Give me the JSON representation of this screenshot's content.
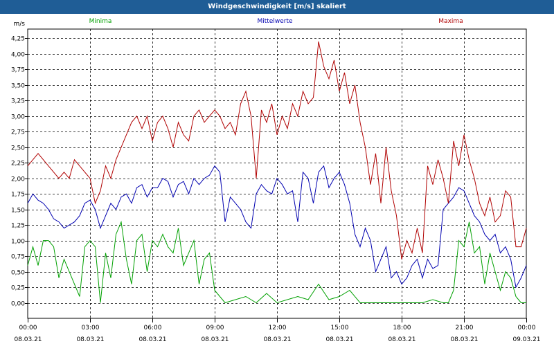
{
  "window": {
    "title": "Windgeschwindigkeit [m/s] skaliert"
  },
  "chart_data": {
    "type": "line",
    "title": "Windgeschwindigkeit [m/s] skaliert",
    "ylabel": "m/s",
    "ylim": [
      -0.25,
      4.4
    ],
    "yticks": [
      0,
      0.25,
      0.5,
      0.75,
      1.0,
      1.25,
      1.5,
      1.75,
      2.0,
      2.25,
      2.5,
      2.75,
      3.0,
      3.25,
      3.5,
      3.75,
      4.0,
      4.25
    ],
    "ytick_labels": [
      "0,00",
      "0,25",
      "0,50",
      "0,75",
      "1,00",
      "1,25",
      "1,50",
      "1,75",
      "2,00",
      "2,25",
      "2,50",
      "2,75",
      "3,00",
      "3,25",
      "3,50",
      "3,75",
      "4,00",
      "4,25"
    ],
    "xlim": [
      0,
      24
    ],
    "xticks": [
      0,
      3,
      6,
      9,
      12,
      15,
      18,
      21,
      24
    ],
    "xtick_time_labels": [
      "00:00",
      "03:00",
      "06:00",
      "09:00",
      "12:00",
      "15:00",
      "18:00",
      "21:00",
      "00:00"
    ],
    "xtick_date_labels": [
      "08.03.21",
      "08.03.21",
      "08.03.21",
      "08.03.21",
      "08.03.21",
      "08.03.21",
      "08.03.21",
      "08.03.21",
      "09.03.21"
    ],
    "grid": true,
    "legend_position": "top",
    "series": [
      {
        "name": "Minima",
        "color": "#00a000",
        "x": [
          0,
          0.25,
          0.5,
          0.75,
          1,
          1.25,
          1.5,
          1.75,
          2,
          2.25,
          2.5,
          2.75,
          3,
          3.25,
          3.5,
          3.75,
          4,
          4.25,
          4.5,
          4.75,
          5,
          5.25,
          5.5,
          5.75,
          6,
          6.25,
          6.5,
          6.75,
          7,
          7.25,
          7.5,
          7.75,
          8,
          8.25,
          8.5,
          8.75,
          9,
          9.5,
          10,
          10.5,
          11,
          11.5,
          12,
          12.5,
          13,
          13.5,
          14,
          14.5,
          15,
          15.5,
          16,
          16.5,
          17,
          17.5,
          18,
          18.5,
          19,
          19.5,
          20,
          20.25,
          20.5,
          20.75,
          21,
          21.25,
          21.5,
          21.75,
          22,
          22.25,
          22.5,
          22.75,
          23,
          23.25,
          23.5,
          23.75,
          24
        ],
        "values": [
          0.6,
          0.9,
          0.6,
          1.0,
          1.0,
          0.9,
          0.4,
          0.7,
          0.5,
          0.3,
          0.1,
          0.9,
          1.0,
          0.9,
          0.0,
          0.8,
          0.4,
          1.1,
          1.3,
          0.7,
          0.3,
          1.0,
          1.1,
          0.5,
          1.0,
          0.9,
          1.1,
          0.9,
          0.8,
          1.2,
          0.6,
          0.8,
          1.0,
          0.3,
          0.7,
          0.8,
          0.2,
          0.0,
          0.05,
          0.1,
          0.0,
          0.15,
          0.0,
          0.05,
          0.1,
          0.05,
          0.3,
          0.05,
          0.1,
          0.2,
          0.0,
          0.0,
          0.0,
          0.0,
          0.0,
          0.0,
          0.0,
          0.05,
          0.0,
          0.0,
          0.2,
          1.0,
          0.9,
          1.3,
          0.8,
          0.9,
          0.3,
          0.8,
          0.5,
          0.2,
          0.5,
          0.4,
          0.1,
          0.0,
          0.0
        ]
      },
      {
        "name": "Mittelwerte",
        "color": "#0000b0",
        "x": [
          0,
          0.25,
          0.5,
          0.75,
          1,
          1.25,
          1.5,
          1.75,
          2,
          2.25,
          2.5,
          2.75,
          3,
          3.25,
          3.5,
          3.75,
          4,
          4.25,
          4.5,
          4.75,
          5,
          5.25,
          5.5,
          5.75,
          6,
          6.25,
          6.5,
          6.75,
          7,
          7.25,
          7.5,
          7.75,
          8,
          8.25,
          8.5,
          8.75,
          9,
          9.25,
          9.5,
          9.75,
          10,
          10.25,
          10.5,
          10.75,
          11,
          11.25,
          11.5,
          11.75,
          12,
          12.25,
          12.5,
          12.75,
          13,
          13.25,
          13.5,
          13.75,
          14,
          14.25,
          14.5,
          14.75,
          15,
          15.25,
          15.5,
          15.75,
          16,
          16.25,
          16.5,
          16.75,
          17,
          17.25,
          17.5,
          17.75,
          18,
          18.25,
          18.5,
          18.75,
          19,
          19.25,
          19.5,
          19.75,
          20,
          20.25,
          20.5,
          20.75,
          21,
          21.25,
          21.5,
          21.75,
          22,
          22.25,
          22.5,
          22.75,
          23,
          23.25,
          23.5,
          23.75,
          24
        ],
        "values": [
          1.6,
          1.75,
          1.65,
          1.6,
          1.5,
          1.35,
          1.3,
          1.2,
          1.25,
          1.3,
          1.4,
          1.6,
          1.65,
          1.5,
          1.2,
          1.4,
          1.6,
          1.5,
          1.7,
          1.75,
          1.6,
          1.85,
          1.9,
          1.7,
          1.85,
          1.85,
          2.0,
          1.95,
          1.7,
          1.9,
          1.95,
          1.75,
          2.0,
          1.9,
          2.0,
          2.05,
          2.2,
          2.1,
          1.3,
          1.7,
          1.6,
          1.5,
          1.3,
          1.2,
          1.75,
          1.9,
          1.8,
          1.75,
          2.0,
          1.9,
          1.75,
          1.8,
          1.3,
          2.1,
          2.0,
          1.6,
          2.1,
          2.2,
          1.85,
          2.0,
          2.1,
          1.9,
          1.6,
          1.1,
          0.9,
          1.2,
          1.0,
          0.5,
          0.7,
          0.9,
          0.4,
          0.5,
          0.3,
          0.4,
          0.6,
          0.7,
          0.4,
          0.7,
          0.55,
          0.6,
          1.5,
          1.6,
          1.7,
          1.85,
          1.8,
          1.6,
          1.4,
          1.3,
          1.1,
          1.0,
          1.1,
          0.8,
          0.9,
          0.7,
          0.25,
          0.4,
          0.6
        ]
      },
      {
        "name": "Maxima",
        "color": "#b00000",
        "x": [
          0,
          0.25,
          0.5,
          0.75,
          1,
          1.25,
          1.5,
          1.75,
          2,
          2.25,
          2.5,
          2.75,
          3,
          3.25,
          3.5,
          3.75,
          4,
          4.25,
          4.5,
          4.75,
          5,
          5.25,
          5.5,
          5.75,
          6,
          6.25,
          6.5,
          6.75,
          7,
          7.25,
          7.5,
          7.75,
          8,
          8.25,
          8.5,
          8.75,
          9,
          9.25,
          9.5,
          9.75,
          10,
          10.25,
          10.5,
          10.75,
          11,
          11.25,
          11.5,
          11.75,
          12,
          12.25,
          12.5,
          12.75,
          13,
          13.25,
          13.5,
          13.75,
          14,
          14.25,
          14.5,
          14.75,
          15,
          15.25,
          15.5,
          15.75,
          16,
          16.25,
          16.5,
          16.75,
          17,
          17.25,
          17.5,
          17.75,
          18,
          18.25,
          18.5,
          18.75,
          19,
          19.25,
          19.5,
          19.75,
          20,
          20.25,
          20.5,
          20.75,
          21,
          21.25,
          21.5,
          21.75,
          22,
          22.25,
          22.5,
          22.75,
          23,
          23.25,
          23.5,
          23.75,
          24
        ],
        "values": [
          2.2,
          2.3,
          2.4,
          2.3,
          2.2,
          2.1,
          2.0,
          2.1,
          2.0,
          2.3,
          2.2,
          2.1,
          2.0,
          1.6,
          1.8,
          2.2,
          2.0,
          2.3,
          2.5,
          2.7,
          2.9,
          3.0,
          2.8,
          3.0,
          2.6,
          2.9,
          3.0,
          2.8,
          2.5,
          2.9,
          2.7,
          2.6,
          3.0,
          3.1,
          2.9,
          3.0,
          3.1,
          3.0,
          2.8,
          2.9,
          2.7,
          3.2,
          3.4,
          3.0,
          2.0,
          3.1,
          2.9,
          3.2,
          2.7,
          3.0,
          2.8,
          3.2,
          3.0,
          3.4,
          3.2,
          3.3,
          4.2,
          3.8,
          3.6,
          3.9,
          3.4,
          3.7,
          3.2,
          3.5,
          2.9,
          2.5,
          1.9,
          2.4,
          1.6,
          2.5,
          1.8,
          1.4,
          0.7,
          1.0,
          0.8,
          1.2,
          0.8,
          2.2,
          1.9,
          2.3,
          2.0,
          1.6,
          2.6,
          2.2,
          2.7,
          2.3,
          2.0,
          1.6,
          1.4,
          1.7,
          1.3,
          1.4,
          1.8,
          1.7,
          0.9,
          0.9,
          1.2
        ]
      }
    ]
  }
}
